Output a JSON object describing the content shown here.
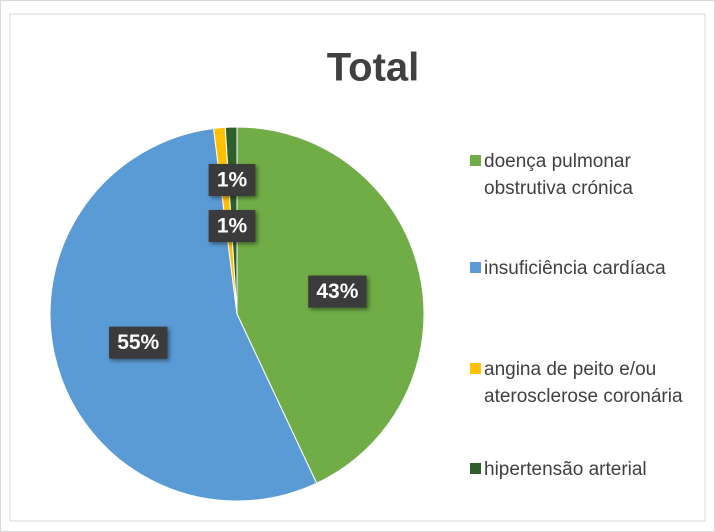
{
  "chart_data": {
    "type": "pie",
    "title": "Total",
    "categories": [
      "doença pulmonar obstrutiva crónica",
      "insuficiência cardíaca",
      "angina de peito e/ou aterosclerose coronária",
      "hipertensão arterial"
    ],
    "values": [
      43,
      55,
      1,
      1
    ],
    "value_labels": [
      "43%",
      "55%",
      "1%",
      "1%"
    ],
    "colors": [
      "#70ad47",
      "#5b9bd5",
      "#ffc000",
      "#2f5f2a"
    ],
    "legend": "right"
  }
}
